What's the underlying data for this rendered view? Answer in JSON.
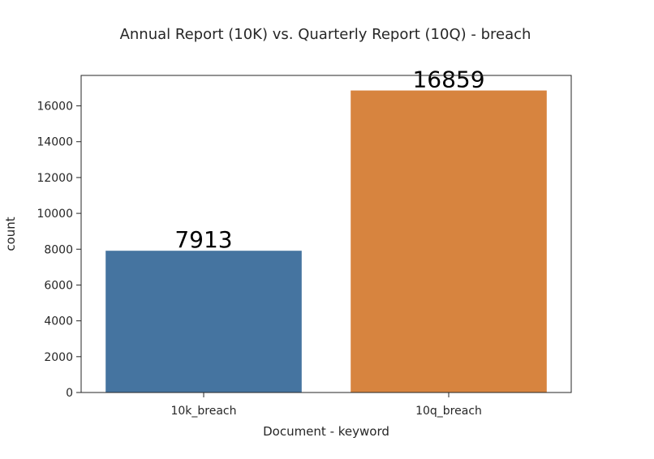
{
  "chart_data": {
    "type": "bar",
    "title": "Annual Report (10K) vs. Quarterly Report (10Q) - breach",
    "xlabel": "Document - keyword",
    "ylabel": "count",
    "categories": [
      "10k_breach",
      "10q_breach"
    ],
    "values": [
      7913,
      16859
    ],
    "data_labels": [
      "7913",
      "16859"
    ],
    "colors": [
      "#4574a0",
      "#d7843f"
    ],
    "ylim": [
      0,
      17700
    ],
    "yticks": [
      0,
      2000,
      4000,
      6000,
      8000,
      10000,
      12000,
      14000,
      16000
    ],
    "grid": false,
    "legend": "none"
  }
}
